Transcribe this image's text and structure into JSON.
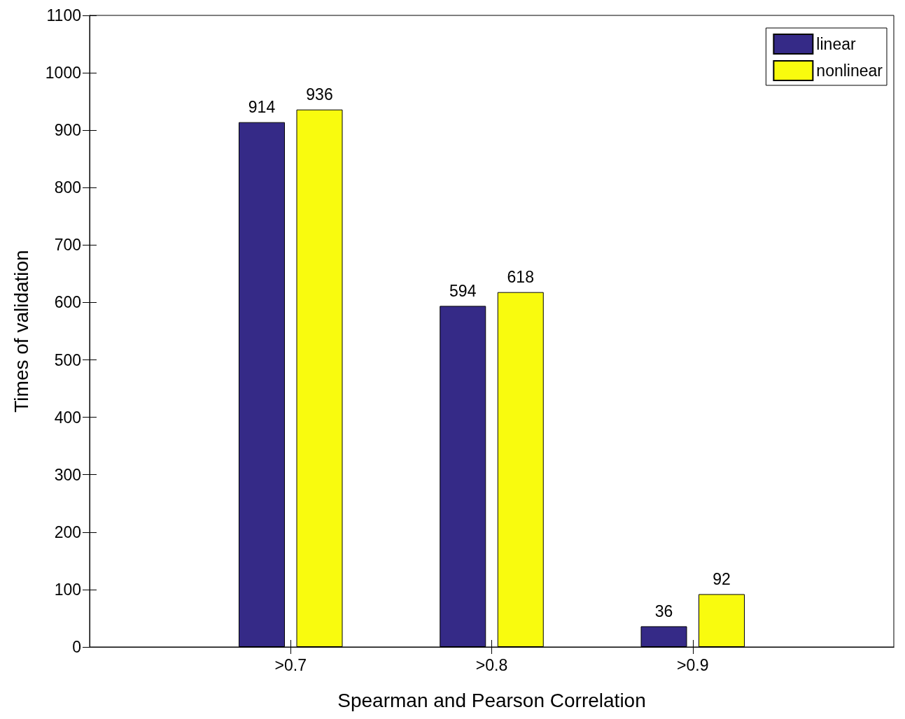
{
  "chart_data": {
    "type": "bar",
    "xlabel": "Spearman and Pearson Correlation",
    "ylabel": "Times of validation",
    "categories": [
      ">0.7",
      ">0.8",
      ">0.9"
    ],
    "series": [
      {
        "name": "linear",
        "color": "#352a87",
        "values": [
          914,
          594,
          36
        ]
      },
      {
        "name": "nonlinear",
        "color": "#f9fb0e",
        "values": [
          936,
          618,
          92
        ]
      }
    ],
    "ylim": [
      0,
      1100
    ],
    "yticks": [
      0,
      100,
      200,
      300,
      400,
      500,
      600,
      700,
      800,
      900,
      1000,
      1100
    ],
    "data_labels": true,
    "legend": "top right",
    "grid": false
  }
}
